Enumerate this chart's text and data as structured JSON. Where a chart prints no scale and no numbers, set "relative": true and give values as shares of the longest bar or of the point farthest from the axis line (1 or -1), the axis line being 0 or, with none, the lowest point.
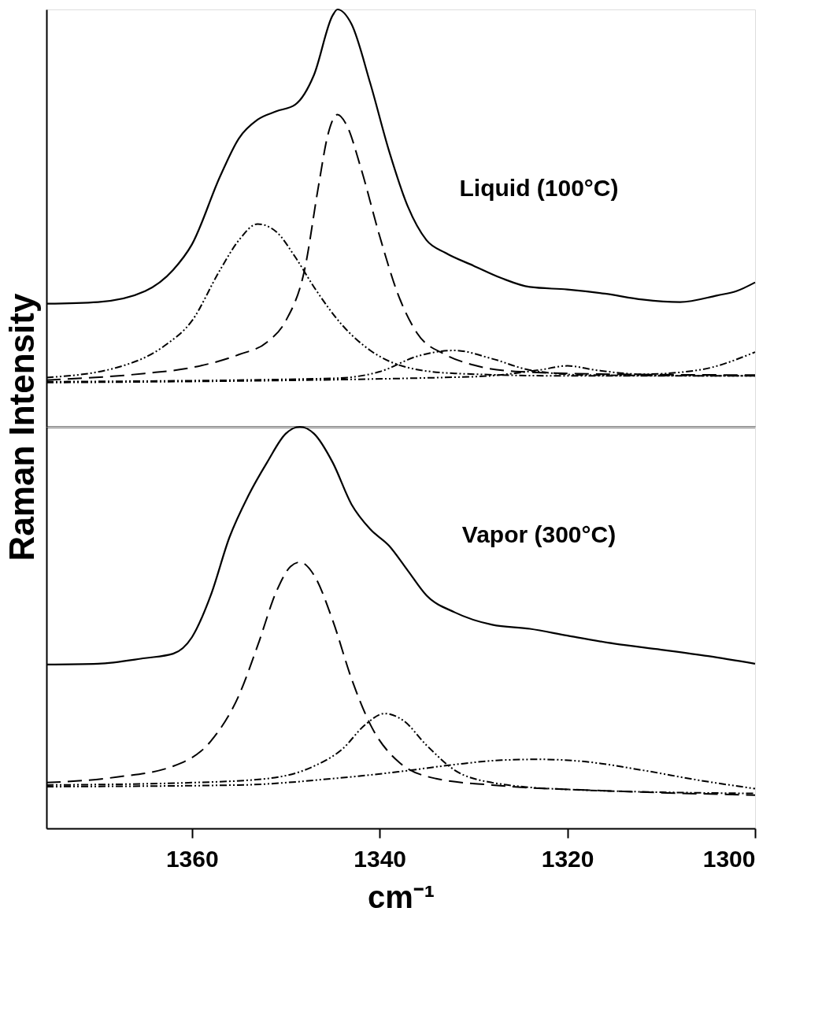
{
  "chart_data": [
    {
      "type": "line",
      "relative": true,
      "ylabel": "Raman Intensity",
      "xlim": [
        1375.5,
        1300
      ],
      "tick_labels": false,
      "grid": false,
      "annotations": [
        "Liquid (100°C)"
      ],
      "series": [
        {
          "color": "#000000",
          "line_style": "solid",
          "x": [
            1375.5,
            1370,
            1365,
            1362,
            1360,
            1357,
            1355,
            1353,
            1351,
            1349,
            1347,
            1345,
            1344.5,
            1343,
            1341,
            1339,
            1337,
            1335,
            1333,
            1330,
            1327,
            1324,
            1320,
            1316,
            1312,
            1308,
            1304,
            1302,
            1300
          ],
          "values": [
            0.295,
            0.299,
            0.325,
            0.376,
            0.437,
            0.6,
            0.691,
            0.736,
            0.756,
            0.772,
            0.843,
            0.986,
            1.0,
            0.965,
            0.823,
            0.661,
            0.528,
            0.447,
            0.417,
            0.386,
            0.356,
            0.335,
            0.329,
            0.319,
            0.305,
            0.299,
            0.315,
            0.325,
            0.346
          ]
        },
        {
          "color": "#000000",
          "line_style": "dashed",
          "x": [
            1375.5,
            1365,
            1360,
            1355,
            1352,
            1350,
            1348,
            1346.5,
            1345.5,
            1344.5,
            1343.5,
            1342,
            1340,
            1338,
            1336,
            1333,
            1330,
            1325,
            1315,
            1300
          ],
          "values": [
            0.112,
            0.128,
            0.142,
            0.173,
            0.203,
            0.254,
            0.376,
            0.579,
            0.701,
            0.748,
            0.722,
            0.62,
            0.457,
            0.315,
            0.224,
            0.173,
            0.148,
            0.132,
            0.126,
            0.124
          ]
        },
        {
          "color": "#000000",
          "line_style": "dotted",
          "x": [
            1375.5,
            1368,
            1363,
            1360,
            1357,
            1355,
            1353,
            1351,
            1349,
            1347,
            1344,
            1341,
            1337,
            1332,
            1320,
            1300
          ],
          "values": [
            0.118,
            0.142,
            0.193,
            0.254,
            0.376,
            0.447,
            0.486,
            0.467,
            0.407,
            0.335,
            0.244,
            0.183,
            0.142,
            0.128,
            0.122,
            0.122
          ]
        },
        {
          "color": "#000000",
          "line_style": "dotted",
          "x": [
            1375.5,
            1345,
            1340,
            1336,
            1332,
            1328,
            1324,
            1318,
            1300
          ],
          "values": [
            0.108,
            0.116,
            0.132,
            0.169,
            0.183,
            0.163,
            0.136,
            0.124,
            0.122
          ]
        },
        {
          "color": "#000000",
          "line_style": "dotted",
          "x": [
            1375.5,
            1330,
            1323,
            1320,
            1317,
            1312,
            1306,
            1300
          ],
          "values": [
            0.106,
            0.12,
            0.136,
            0.146,
            0.136,
            0.126,
            0.136,
            0.179
          ]
        }
      ]
    },
    {
      "type": "line",
      "relative": true,
      "xlabel": "cm⁻¹",
      "xlim": [
        1375.5,
        1300
      ],
      "xticks": [
        1360,
        1340,
        1320,
        1300
      ],
      "tick_labels": "x",
      "grid": false,
      "annotations": [
        "Vapor (300°C)"
      ],
      "series": [
        {
          "color": "#000000",
          "line_style": "solid",
          "x": [
            1375.5,
            1370,
            1365,
            1362,
            1360,
            1358,
            1356,
            1354,
            1352,
            1350,
            1348.5,
            1347,
            1345,
            1343,
            1341,
            1339,
            1337,
            1335,
            1332,
            1328,
            1324,
            1320,
            1315,
            1310,
            1305,
            1300
          ],
          "values": [
            0.408,
            0.41,
            0.424,
            0.435,
            0.476,
            0.58,
            0.725,
            0.828,
            0.911,
            0.983,
            1.0,
            0.983,
            0.911,
            0.807,
            0.745,
            0.704,
            0.642,
            0.58,
            0.538,
            0.507,
            0.497,
            0.48,
            0.46,
            0.445,
            0.429,
            0.41
          ]
        },
        {
          "color": "#000000",
          "line_style": "dashed",
          "x": [
            1375.5,
            1368,
            1362,
            1358,
            1355,
            1353,
            1351,
            1349.5,
            1348.5,
            1347,
            1345,
            1343,
            1341,
            1338,
            1334,
            1328,
            1315,
            1300
          ],
          "values": [
            0.114,
            0.128,
            0.155,
            0.217,
            0.331,
            0.455,
            0.59,
            0.652,
            0.663,
            0.631,
            0.518,
            0.373,
            0.259,
            0.166,
            0.124,
            0.108,
            0.093,
            0.083
          ]
        },
        {
          "color": "#000000",
          "line_style": "dotted",
          "x": [
            1375.5,
            1360,
            1352,
            1347,
            1344,
            1341.5,
            1339.5,
            1337.5,
            1335,
            1332,
            1328,
            1320,
            1300
          ],
          "values": [
            0.108,
            0.114,
            0.124,
            0.155,
            0.197,
            0.259,
            0.286,
            0.269,
            0.207,
            0.145,
            0.114,
            0.097,
            0.087
          ]
        },
        {
          "color": "#000000",
          "line_style": "dotted",
          "x": [
            1375.5,
            1355,
            1345,
            1338,
            1332,
            1327,
            1323,
            1318,
            1312,
            1306,
            1300
          ],
          "values": [
            0.104,
            0.108,
            0.124,
            0.141,
            0.159,
            0.17,
            0.172,
            0.166,
            0.145,
            0.12,
            0.099
          ]
        }
      ]
    }
  ]
}
